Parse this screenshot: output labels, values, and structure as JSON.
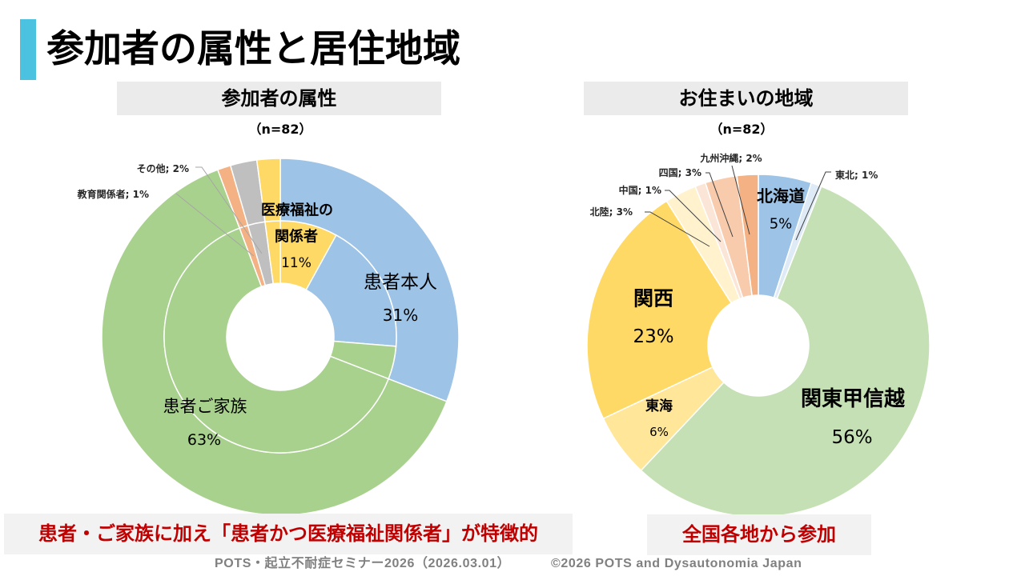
{
  "page": {
    "title": "参加者の属性と居住地域",
    "accent_color": "#4bc3e0"
  },
  "callouts": {
    "left": "患者・ご家族に加え「患者かつ医療福祉関係者」が特徴的",
    "right": "全国各地から参加",
    "text_color": "#c00000"
  },
  "footer": {
    "seminar": "POTS・起立不耐症セミナー2026（2026.03.01）",
    "copyright": "©2026 POTS and Dysautonomia Japan"
  },
  "chart_data": [
    {
      "type": "pie",
      "style": "doughnut",
      "title": "参加者の属性",
      "sample_size": "（n=82）",
      "label_separator": "; ",
      "categories": [
        {
          "name_lines": [
            "患者本人"
          ],
          "pct_label": "31%",
          "color": "#9dc3e6"
        },
        {
          "name_lines": [
            "患者ご家族"
          ],
          "pct_label": "63%",
          "color": "#a9d18e"
        },
        {
          "name_lines": [
            "教育関係者"
          ],
          "pct_label": "1%",
          "color": "#f4b183"
        },
        {
          "name_lines": [
            "その他"
          ],
          "pct_label": "2%",
          "color": "#bfbfbf"
        },
        {
          "name_lines": [
            "医療福祉の",
            "関係者"
          ],
          "pct_label": "11%",
          "color": "#ffd966"
        }
      ],
      "rings": [
        {
          "slices": [
            {
              "category": 0,
              "value": 30.9
            },
            {
              "category": 1,
              "value": 63.4
            },
            {
              "category": 2,
              "value": 1.2
            },
            {
              "category": 3,
              "value": 2.4
            },
            {
              "category": 4,
              "value": 2.1
            }
          ]
        },
        {
          "slices": [
            {
              "category": 4,
              "value": 8.0
            },
            {
              "category": 0,
              "value": 18.3
            },
            {
              "category": 1,
              "value": 4.6
            },
            {
              "category": 1,
              "value": 63.4
            },
            {
              "category": 2,
              "value": 1.2
            },
            {
              "category": 3,
              "value": 2.4
            },
            {
              "category": 4,
              "value": 2.1
            }
          ]
        }
      ]
    },
    {
      "type": "pie",
      "style": "doughnut",
      "title": "お住まいの地域",
      "sample_size": "（n=82）",
      "label_separator": "; ",
      "categories": [
        {
          "name_lines": [
            "北海道"
          ],
          "pct_label": "5%",
          "color": "#9dc3e6"
        },
        {
          "name_lines": [
            "東北"
          ],
          "pct_label": "1%",
          "color": "#deebf7"
        },
        {
          "name_lines": [
            "関東甲信越"
          ],
          "pct_label": "56%",
          "color": "#c5e0b4"
        },
        {
          "name_lines": [
            "東海"
          ],
          "pct_label": "6%",
          "color": "#ffe699"
        },
        {
          "name_lines": [
            "関西"
          ],
          "pct_label": "23%",
          "color": "#ffd966"
        },
        {
          "name_lines": [
            "北陸"
          ],
          "pct_label": "3%",
          "color": "#fff2cc"
        },
        {
          "name_lines": [
            "中国"
          ],
          "pct_label": "1%",
          "color": "#fbe5d6"
        },
        {
          "name_lines": [
            "四国"
          ],
          "pct_label": "3%",
          "color": "#f8cbad"
        },
        {
          "name_lines": [
            "九州沖縄"
          ],
          "pct_label": "2%",
          "color": "#f4b183"
        }
      ],
      "rings": [
        {
          "slices": [
            {
              "category": 0,
              "value": 5
            },
            {
              "category": 1,
              "value": 1
            },
            {
              "category": 2,
              "value": 56
            },
            {
              "category": 3,
              "value": 6
            },
            {
              "category": 4,
              "value": 23
            },
            {
              "category": 5,
              "value": 3
            },
            {
              "category": 6,
              "value": 1
            },
            {
              "category": 7,
              "value": 3
            },
            {
              "category": 8,
              "value": 2
            }
          ]
        }
      ]
    }
  ]
}
